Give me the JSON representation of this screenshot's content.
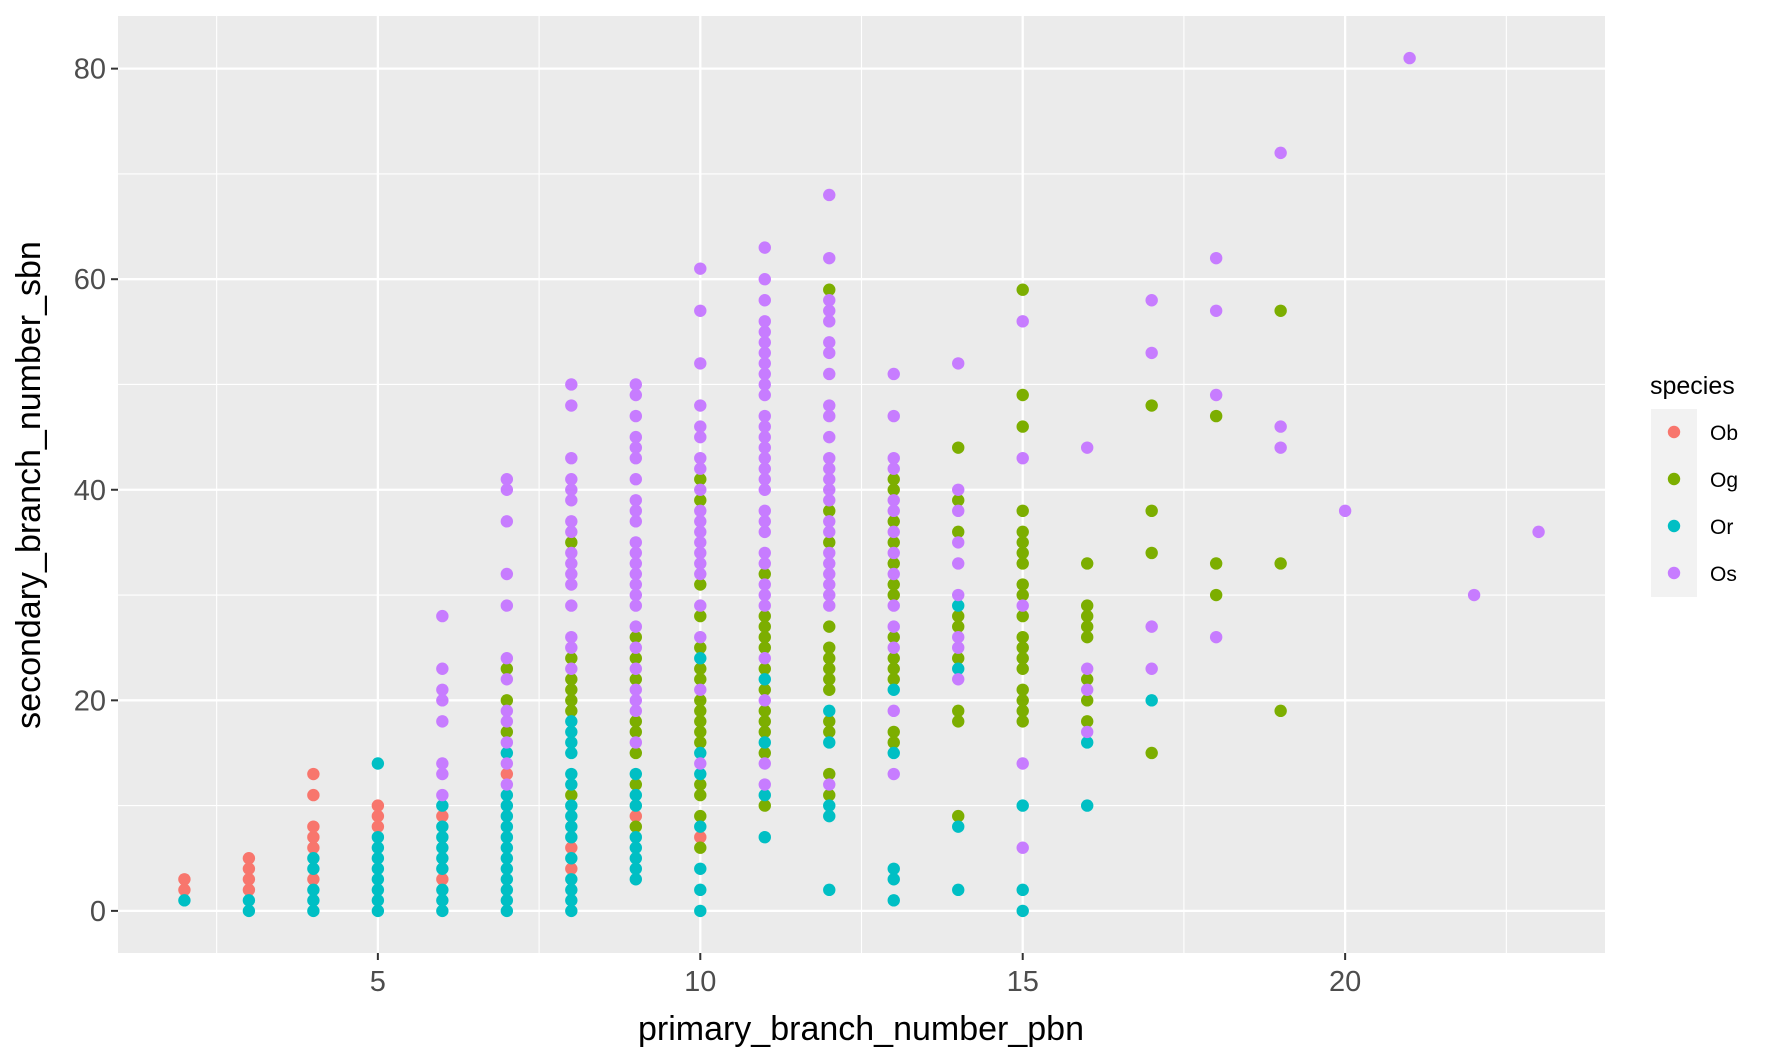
{
  "chart_data": {
    "type": "scatter",
    "title": "",
    "xlabel": "primary_branch_number_pbn",
    "ylabel": "secondary_branch_number_sbn",
    "xlim": [
      0.97,
      24.03
    ],
    "ylim": [
      -4,
      85
    ],
    "x_ticks": [
      5,
      10,
      15,
      20
    ],
    "y_ticks": [
      0,
      20,
      40,
      60,
      80
    ],
    "x_tick_labels": [
      "5",
      "10",
      "15",
      "20"
    ],
    "y_tick_labels": [
      "0",
      "20",
      "40",
      "60",
      "80"
    ],
    "grid": true,
    "legend": {
      "title": "species",
      "position": "right"
    },
    "series": [
      {
        "name": "Ob",
        "color": "#F8766D",
        "points": {
          "2": [
            2,
            3
          ],
          "3": [
            2,
            3,
            4,
            5
          ],
          "4": [
            3,
            6,
            7,
            8,
            11,
            13
          ],
          "5": [
            8,
            9,
            10
          ],
          "6": [
            3,
            9
          ],
          "7": [
            13
          ],
          "8": [
            4,
            6
          ],
          "9": [
            9
          ],
          "10": [
            7
          ]
        }
      },
      {
        "name": "Og",
        "color": "#7CAE00",
        "points": {
          "7": [
            17,
            20,
            23
          ],
          "8": [
            11,
            19,
            20,
            21,
            22,
            24,
            35
          ],
          "9": [
            8,
            12,
            15,
            17,
            18,
            22,
            24,
            26
          ],
          "10": [
            6,
            9,
            11,
            12,
            16,
            17,
            18,
            19,
            20,
            22,
            23,
            25,
            28,
            31,
            39,
            41
          ],
          "11": [
            10,
            15,
            17,
            18,
            19,
            21,
            23,
            25,
            26,
            27,
            28,
            32
          ],
          "12": [
            11,
            13,
            17,
            18,
            21,
            22,
            23,
            24,
            25,
            27,
            35,
            38,
            59
          ],
          "13": [
            16,
            17,
            22,
            23,
            24,
            26,
            30,
            31,
            33,
            35,
            37,
            40,
            41
          ],
          "14": [
            9,
            18,
            19,
            24,
            27,
            28,
            36,
            39,
            44
          ],
          "15": [
            18,
            19,
            20,
            21,
            23,
            24,
            25,
            26,
            28,
            30,
            31,
            33,
            34,
            35,
            36,
            38,
            46,
            49,
            59
          ],
          "16": [
            18,
            20,
            22,
            26,
            27,
            28,
            29,
            33
          ],
          "17": [
            15,
            34,
            38,
            48
          ],
          "18": [
            30,
            33,
            47
          ],
          "19": [
            19,
            33,
            57
          ]
        }
      },
      {
        "name": "Or",
        "color": "#00BFC4",
        "points": {
          "2": [
            1
          ],
          "3": [
            0,
            1
          ],
          "4": [
            0,
            1,
            2,
            4,
            5
          ],
          "5": [
            0,
            1,
            2,
            3,
            4,
            5,
            6,
            7,
            14
          ],
          "6": [
            0,
            1,
            2,
            4,
            5,
            6,
            7,
            8,
            10
          ],
          "7": [
            0,
            1,
            2,
            3,
            4,
            5,
            6,
            7,
            8,
            9,
            10,
            11,
            15
          ],
          "8": [
            0,
            1,
            2,
            3,
            5,
            7,
            8,
            9,
            10,
            12,
            13,
            15,
            16,
            17,
            18
          ],
          "9": [
            3,
            4,
            5,
            6,
            7,
            10,
            11,
            13
          ],
          "10": [
            0,
            2,
            4,
            8,
            13,
            15,
            24
          ],
          "11": [
            7,
            11,
            16,
            22
          ],
          "12": [
            2,
            9,
            10,
            16,
            19
          ],
          "13": [
            1,
            3,
            4,
            15,
            21
          ],
          "14": [
            2,
            8,
            23,
            29
          ],
          "15": [
            0,
            2,
            10
          ],
          "16": [
            10,
            16
          ],
          "17": [
            20
          ]
        }
      },
      {
        "name": "Os",
        "color": "#C77CFF",
        "points": {
          "6": [
            11,
            13,
            14,
            18,
            20,
            21,
            23,
            28
          ],
          "7": [
            12,
            14,
            16,
            18,
            19,
            22,
            24,
            29,
            32,
            37,
            40,
            41
          ],
          "8": [
            23,
            25,
            26,
            29,
            31,
            32,
            33,
            34,
            36,
            37,
            39,
            40,
            41,
            43,
            48,
            50
          ],
          "9": [
            16,
            19,
            20,
            21,
            23,
            25,
            27,
            29,
            30,
            31,
            32,
            33,
            34,
            35,
            37,
            38,
            39,
            41,
            43,
            44,
            45,
            47,
            49,
            50
          ],
          "10": [
            14,
            21,
            26,
            29,
            32,
            33,
            34,
            35,
            36,
            37,
            38,
            40,
            42,
            43,
            45,
            46,
            48,
            52,
            57,
            61
          ],
          "11": [
            12,
            14,
            20,
            24,
            29,
            30,
            31,
            33,
            34,
            36,
            37,
            38,
            40,
            41,
            42,
            43,
            44,
            45,
            46,
            47,
            49,
            50,
            51,
            52,
            53,
            54,
            55,
            56,
            58,
            60,
            63
          ],
          "12": [
            12,
            29,
            30,
            31,
            32,
            33,
            34,
            36,
            37,
            39,
            40,
            41,
            42,
            43,
            45,
            47,
            48,
            51,
            53,
            54,
            56,
            57,
            58,
            62,
            68
          ],
          "13": [
            13,
            19,
            25,
            27,
            29,
            32,
            34,
            36,
            38,
            39,
            42,
            43,
            47,
            51
          ],
          "14": [
            22,
            25,
            26,
            30,
            33,
            35,
            38,
            40,
            52
          ],
          "15": [
            6,
            14,
            29,
            43,
            56
          ],
          "16": [
            17,
            21,
            23,
            44
          ],
          "17": [
            23,
            27,
            53,
            58
          ],
          "18": [
            26,
            49,
            57,
            62
          ],
          "19": [
            44,
            46,
            72
          ],
          "20": [
            38
          ],
          "21": [
            81
          ],
          "22": [
            30
          ],
          "23": [
            36
          ]
        }
      }
    ]
  }
}
